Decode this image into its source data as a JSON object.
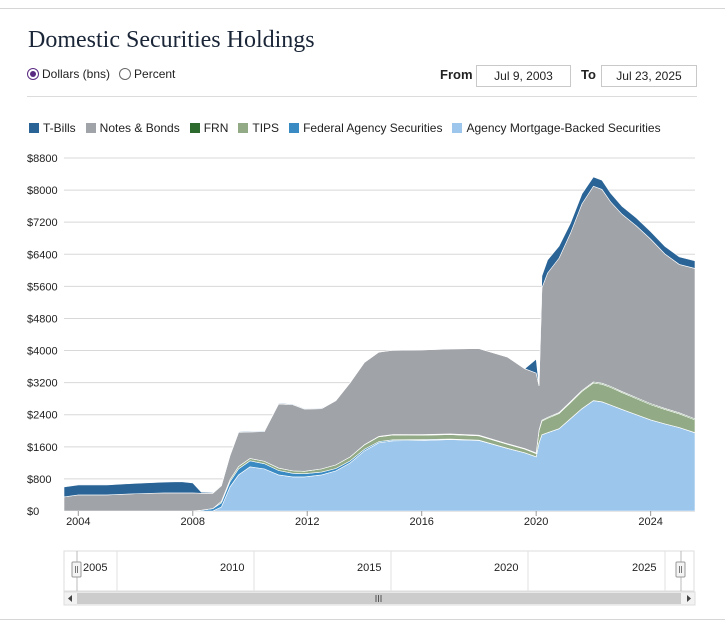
{
  "title": "Domestic Securities Holdings",
  "units": {
    "options": [
      {
        "label": "Dollars (bns)",
        "selected": true
      },
      {
        "label": "Percent",
        "selected": false
      }
    ]
  },
  "date_range": {
    "from_label": "From",
    "from_value": "Jul 9, 2003",
    "to_label": "To",
    "to_value": "Jul 23, 2025"
  },
  "legend": [
    {
      "name": "T-Bills",
      "color": "#2a6496"
    },
    {
      "name": "Notes & Bonds",
      "color": "#a0a3a8"
    },
    {
      "name": "FRN",
      "color": "#2d6a2d"
    },
    {
      "name": "TIPS",
      "color": "#92ab86"
    },
    {
      "name": "Federal Agency Securities",
      "color": "#3a8ac4"
    },
    {
      "name": "Agency Mortgage-Backed Securities",
      "color": "#9cc6ec"
    }
  ],
  "navigator": {
    "labels": [
      "2005",
      "2010",
      "2015",
      "2020",
      "2025"
    ]
  },
  "chart_data": {
    "type": "area",
    "stacked": true,
    "x": [
      2003.5,
      2004.0,
      2005.0,
      2006.0,
      2007.0,
      2007.6,
      2008.0,
      2008.3,
      2008.7,
      2009.0,
      2009.3,
      2009.6,
      2010.0,
      2010.5,
      2011.0,
      2011.5,
      2011.9,
      2012.5,
      2013.0,
      2013.5,
      2014.0,
      2014.5,
      2015.0,
      2016.0,
      2017.0,
      2018.0,
      2019.0,
      2019.6,
      2020.0,
      2020.1,
      2020.2,
      2020.4,
      2020.8,
      2021.2,
      2021.6,
      2022.0,
      2022.3,
      2022.6,
      2023.0,
      2023.5,
      2024.0,
      2024.5,
      2025.0,
      2025.55
    ],
    "series": [
      {
        "name": "Agency Mortgage-Backed Securities",
        "color": "#9cc6ec",
        "values": [
          0,
          0,
          0,
          0,
          0,
          0,
          0,
          0,
          0,
          100,
          600,
          900,
          1100,
          1050,
          900,
          850,
          850,
          900,
          1000,
          1200,
          1500,
          1700,
          1750,
          1760,
          1780,
          1760,
          1560,
          1450,
          1350,
          1700,
          1900,
          1950,
          2050,
          2300,
          2550,
          2750,
          2720,
          2640,
          2530,
          2400,
          2270,
          2170,
          2080,
          1950
        ]
      },
      {
        "name": "Federal Agency Securities",
        "color": "#3a8ac4",
        "values": [
          0,
          0,
          0,
          0,
          0,
          0,
          0,
          20,
          60,
          100,
          130,
          150,
          150,
          130,
          110,
          90,
          80,
          70,
          60,
          50,
          40,
          30,
          25,
          20,
          15,
          5,
          2,
          2,
          2,
          2,
          2,
          2,
          2,
          2,
          2,
          2,
          2,
          2,
          2,
          2,
          2,
          2,
          2,
          2
        ]
      },
      {
        "name": "TIPS",
        "color": "#92ab86",
        "values": [
          0,
          0,
          0,
          0,
          0,
          0,
          0,
          0,
          0,
          40,
          50,
          60,
          60,
          60,
          60,
          60,
          60,
          80,
          90,
          100,
          110,
          120,
          120,
          110,
          110,
          110,
          100,
          90,
          80,
          300,
          340,
          360,
          380,
          400,
          430,
          440,
          440,
          440,
          420,
          400,
          380,
          360,
          340,
          320
        ]
      },
      {
        "name": "FRN",
        "color": "#2d6a2d",
        "values": [
          0,
          0,
          0,
          0,
          0,
          0,
          0,
          0,
          0,
          0,
          0,
          0,
          0,
          0,
          0,
          0,
          0,
          0,
          0,
          0,
          5,
          10,
          12,
          15,
          15,
          15,
          15,
          15,
          15,
          20,
          20,
          22,
          22,
          24,
          24,
          25,
          25,
          25,
          25,
          25,
          25,
          25,
          25,
          25
        ]
      },
      {
        "name": "Notes & Bonds",
        "color": "#a0a3a8",
        "values": [
          350,
          400,
          400,
          430,
          450,
          450,
          450,
          420,
          380,
          390,
          600,
          850,
          660,
          740,
          1600,
          1650,
          1550,
          1500,
          1600,
          1850,
          2050,
          2100,
          2100,
          2110,
          2120,
          2160,
          2160,
          1990,
          1990,
          1100,
          3300,
          3600,
          3850,
          4200,
          4650,
          4880,
          4830,
          4600,
          4420,
          4280,
          4100,
          3850,
          3700,
          3750
        ]
      },
      {
        "name": "T-Bills",
        "color": "#2a6496",
        "values": [
          250,
          250,
          250,
          260,
          270,
          280,
          250,
          30,
          20,
          20,
          20,
          18,
          18,
          18,
          18,
          18,
          18,
          18,
          0,
          0,
          0,
          0,
          0,
          0,
          0,
          0,
          0,
          0,
          350,
          0,
          300,
          326,
          300,
          250,
          250,
          230,
          230,
          220,
          200,
          200,
          190,
          190,
          190,
          190
        ]
      }
    ],
    "ylim": [
      0,
      8800
    ],
    "yticks": [
      "$0",
      "$800",
      "$1600",
      "$2400",
      "$3200",
      "$4000",
      "$4800",
      "$5600",
      "$6400",
      "$7200",
      "$8000",
      "$8800"
    ],
    "ytick_values": [
      0,
      800,
      1600,
      2400,
      3200,
      4000,
      4800,
      5600,
      6400,
      7200,
      8000,
      8800
    ],
    "xlim": [
      2003.5,
      2025.55
    ],
    "xticks": [
      "2004",
      "2008",
      "2012",
      "2016",
      "2020",
      "2024"
    ],
    "xtick_values": [
      2004,
      2008,
      2012,
      2016,
      2020,
      2024
    ],
    "grid": true,
    "legend_position": "top"
  }
}
